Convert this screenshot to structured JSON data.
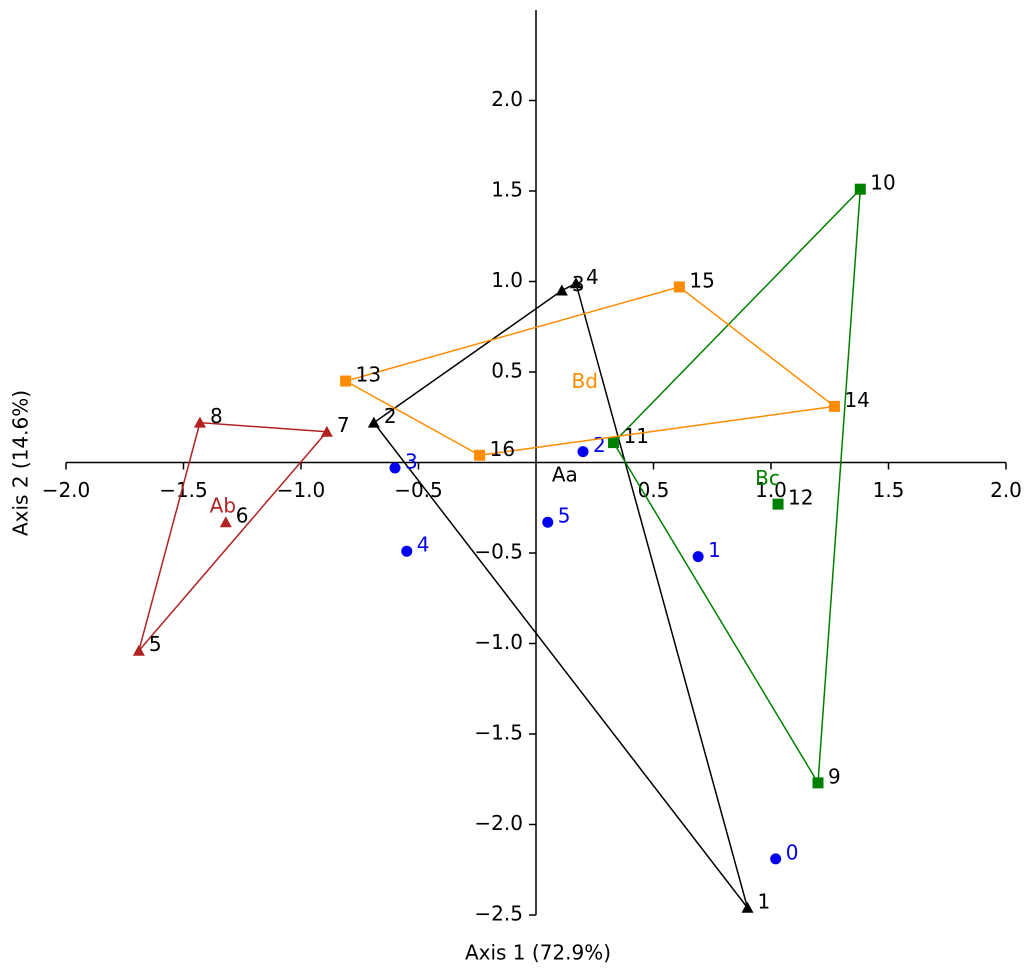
{
  "chart_data": {
    "type": "scatter",
    "x_label": "Axis 1 (72.9%)",
    "y_label": "Axis 2 (14.6%)",
    "xlim": [
      -2.0,
      2.0
    ],
    "ylim": [
      -2.5,
      2.5
    ],
    "xticks": [
      {
        "value": -2,
        "label": "−2.0"
      },
      {
        "value": -1.5,
        "label": "−1.5"
      },
      {
        "value": -1,
        "label": "−1.0"
      },
      {
        "value": -0.5,
        "label": "−0.5"
      },
      {
        "value": 0.5,
        "label": "0.5"
      },
      {
        "value": 1,
        "label": "1.0"
      },
      {
        "value": 1.5,
        "label": "1.5"
      },
      {
        "value": 2,
        "label": "2.0"
      }
    ],
    "yticks": [
      {
        "value": 2,
        "label": "2.0"
      },
      {
        "value": 1.5,
        "label": "1.5"
      },
      {
        "value": 1,
        "label": "1.0"
      },
      {
        "value": 0.5,
        "label": "0.5"
      },
      {
        "value": -0.5,
        "label": "−0.5"
      },
      {
        "value": -1,
        "label": "−1.0"
      },
      {
        "value": -1.5,
        "label": "−1.5"
      },
      {
        "value": -2,
        "label": "−2.0"
      },
      {
        "value": -2.5,
        "label": "−2.5"
      }
    ],
    "series": [
      {
        "name": "Aa",
        "color": "#000000",
        "label_color": "#000000",
        "marker": "triangle",
        "labels": [
          "1",
          "2",
          "3",
          "4"
        ],
        "x": [
          0.9,
          -0.69,
          0.11,
          0.17
        ],
        "y": [
          -2.46,
          0.22,
          0.95,
          0.99
        ],
        "hull": [
          1,
          2,
          3,
          0
        ]
      },
      {
        "name": "Ab",
        "color": "#b22222",
        "label_color": "#000000",
        "marker": "triangle",
        "labels": [
          "5",
          "6",
          "7",
          "8"
        ],
        "x": [
          -1.69,
          -1.32,
          -0.89,
          -1.43
        ],
        "y": [
          -1.04,
          -0.33,
          0.17,
          0.22
        ],
        "hull": [
          0,
          3,
          2
        ]
      },
      {
        "color": "#0000ee",
        "label_color": "#0000ee",
        "marker": "circle",
        "labels": [
          "0",
          "1",
          "2",
          "3",
          "4",
          "5"
        ],
        "x": [
          1.02,
          0.69,
          0.2,
          -0.6,
          -0.55,
          0.05
        ],
        "y": [
          -2.19,
          -0.52,
          0.06,
          -0.03,
          -0.49,
          -0.33
        ]
      },
      {
        "name": "Bc",
        "color": "#008000",
        "label_color": "#000000",
        "marker": "square",
        "labels": [
          "9",
          "10",
          "11",
          "12"
        ],
        "x": [
          1.2,
          1.38,
          0.33,
          1.03
        ],
        "y": [
          -1.77,
          1.51,
          0.11,
          -0.23
        ],
        "hull": [
          0,
          2,
          1
        ]
      },
      {
        "name": "Bd",
        "color": "#ff8c00",
        "label_color": "#000000",
        "marker": "square",
        "labels": [
          "13",
          "14",
          "15",
          "16"
        ],
        "x": [
          -0.81,
          1.27,
          0.61,
          -0.24
        ],
        "y": [
          0.45,
          0.31,
          0.97,
          0.04
        ],
        "hull": [
          0,
          2,
          1,
          3
        ]
      }
    ]
  }
}
